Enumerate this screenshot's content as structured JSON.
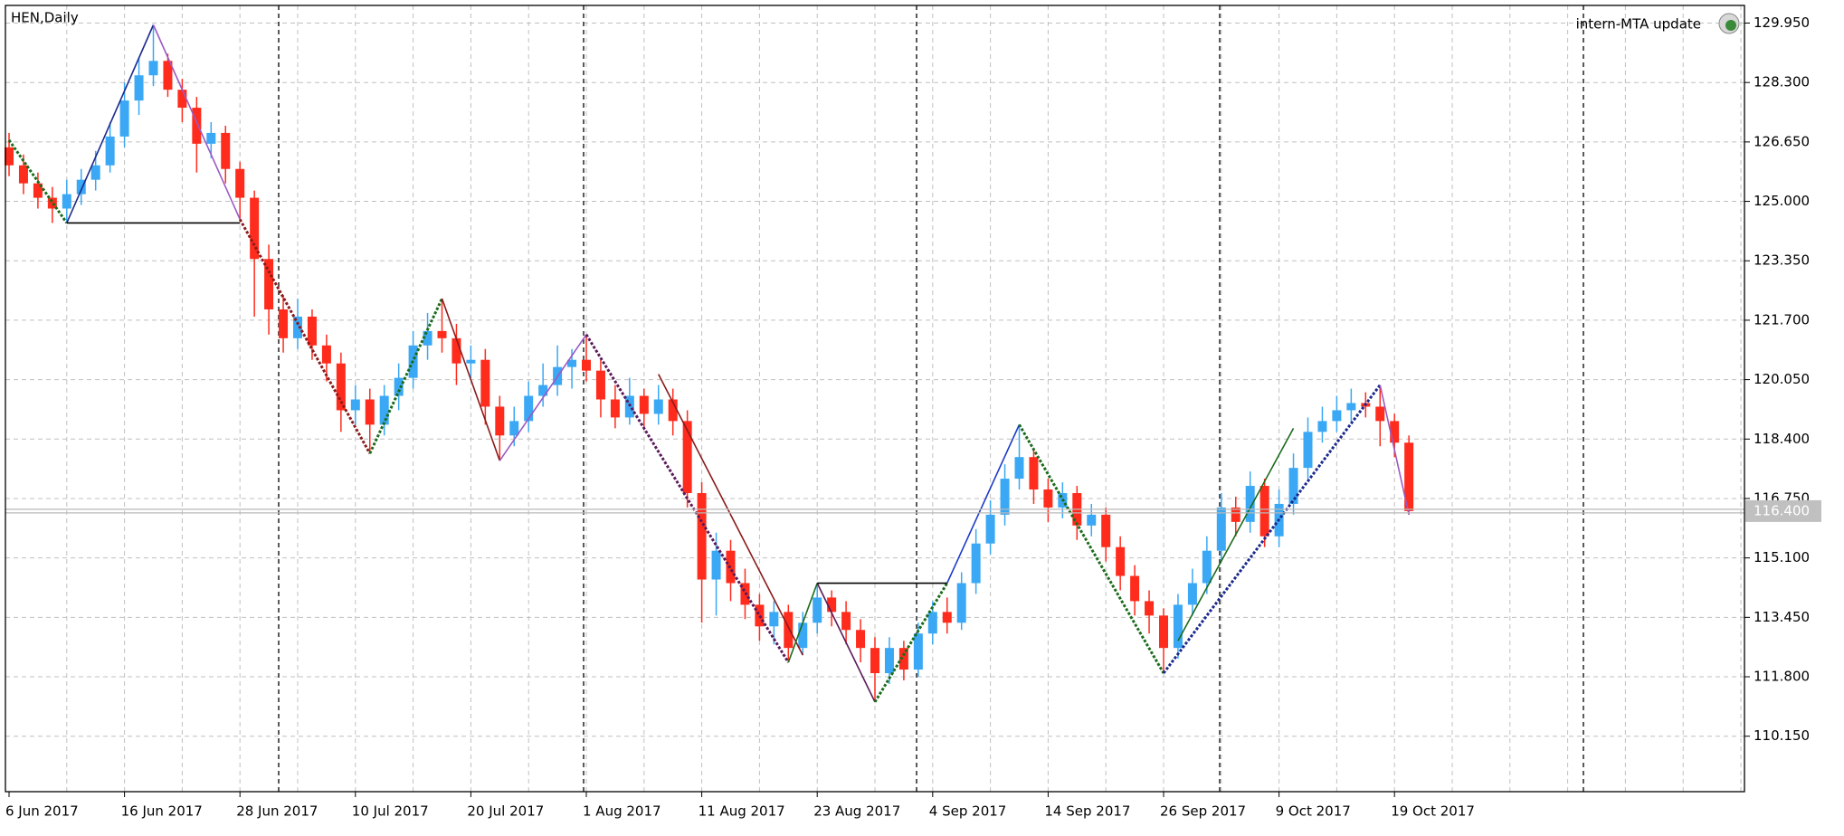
{
  "chart_data": {
    "type": "candlestick",
    "title": "HEN,Daily",
    "annotation": "intern-MTA update",
    "up_color": "#3aa8f4",
    "down_color": "#ff2b1c",
    "grid": true,
    "ylim": [
      108.61,
      130.44
    ],
    "yticks": [
      {
        "value": 129.95,
        "label": "129.950"
      },
      {
        "value": 128.3,
        "label": "128.300"
      },
      {
        "value": 126.65,
        "label": "126.650"
      },
      {
        "value": 125.0,
        "label": "125.000"
      },
      {
        "value": 123.35,
        "label": "123.350"
      },
      {
        "value": 121.7,
        "label": "121.700"
      },
      {
        "value": 120.05,
        "label": "120.050"
      },
      {
        "value": 118.4,
        "label": "118.400"
      },
      {
        "value": 116.75,
        "label": "116.750"
      },
      {
        "value": 115.1,
        "label": "115.100"
      },
      {
        "value": 113.45,
        "label": "113.450"
      },
      {
        "value": 111.8,
        "label": "111.800"
      },
      {
        "value": 110.15,
        "label": "110.150"
      }
    ],
    "current_price": {
      "value": 116.4,
      "label": "116.400"
    },
    "categories": [
      "6 Jun 2017",
      null,
      null,
      null,
      null,
      null,
      null,
      null,
      "16 Jun 2017",
      null,
      null,
      null,
      null,
      null,
      null,
      null,
      "28 Jun 2017",
      null,
      null,
      null,
      null,
      null,
      null,
      null,
      "10 Jul 2017",
      null,
      null,
      null,
      null,
      null,
      null,
      null,
      "20 Jul 2017",
      null,
      null,
      null,
      null,
      null,
      null,
      null,
      "1 Aug 2017",
      null,
      null,
      null,
      null,
      null,
      null,
      null,
      "11 Aug 2017",
      null,
      null,
      null,
      null,
      null,
      null,
      null,
      "23 Aug 2017",
      null,
      null,
      null,
      null,
      null,
      null,
      null,
      "4 Sep 2017",
      null,
      null,
      null,
      null,
      null,
      null,
      null,
      "14 Sep 2017",
      null,
      null,
      null,
      null,
      null,
      null,
      null,
      "26 Sep 2017",
      null,
      null,
      null,
      null,
      null,
      null,
      null,
      "9 Oct 2017",
      null,
      null,
      null,
      null,
      null,
      null,
      null,
      "19 Oct 2017",
      null
    ],
    "ohlc": [
      [
        126.5,
        126.9,
        125.7,
        126.0
      ],
      [
        126.0,
        126.3,
        125.2,
        125.5
      ],
      [
        125.5,
        125.8,
        124.8,
        125.1
      ],
      [
        125.1,
        125.4,
        124.4,
        124.8
      ],
      [
        124.8,
        125.6,
        124.4,
        125.2
      ],
      [
        125.2,
        125.9,
        124.9,
        125.6
      ],
      [
        125.6,
        126.4,
        125.3,
        126.0
      ],
      [
        126.0,
        127.2,
        125.8,
        126.8
      ],
      [
        126.8,
        128.3,
        126.5,
        127.8
      ],
      [
        127.8,
        129.0,
        127.4,
        128.5
      ],
      [
        128.5,
        129.9,
        128.2,
        128.9
      ],
      [
        128.9,
        129.1,
        127.9,
        128.1
      ],
      [
        128.1,
        128.4,
        127.2,
        127.6
      ],
      [
        127.6,
        127.9,
        125.8,
        126.6
      ],
      [
        126.6,
        127.2,
        126.2,
        126.9
      ],
      [
        126.9,
        127.1,
        125.5,
        125.9
      ],
      [
        125.9,
        126.1,
        124.5,
        125.1
      ],
      [
        125.1,
        125.3,
        121.8,
        123.4
      ],
      [
        123.4,
        123.8,
        121.3,
        122.0
      ],
      [
        122.0,
        122.4,
        120.8,
        121.2
      ],
      [
        121.2,
        122.3,
        120.9,
        121.8
      ],
      [
        121.8,
        122.0,
        120.6,
        121.0
      ],
      [
        121.0,
        121.3,
        120.0,
        120.5
      ],
      [
        120.5,
        120.8,
        118.6,
        119.2
      ],
      [
        119.2,
        119.9,
        118.8,
        119.5
      ],
      [
        119.5,
        119.8,
        118.0,
        118.8
      ],
      [
        118.8,
        119.9,
        118.5,
        119.6
      ],
      [
        119.6,
        120.5,
        119.2,
        120.1
      ],
      [
        120.1,
        121.4,
        119.8,
        121.0
      ],
      [
        121.0,
        121.9,
        120.6,
        121.4
      ],
      [
        121.4,
        122.3,
        120.8,
        121.2
      ],
      [
        121.2,
        121.6,
        119.9,
        120.5
      ],
      [
        120.5,
        121.0,
        120.1,
        120.6
      ],
      [
        120.6,
        120.9,
        118.8,
        119.3
      ],
      [
        119.3,
        119.6,
        117.8,
        118.5
      ],
      [
        118.5,
        119.3,
        118.2,
        118.9
      ],
      [
        118.9,
        120.0,
        118.6,
        119.6
      ],
      [
        119.6,
        120.5,
        119.3,
        119.9
      ],
      [
        119.9,
        121.0,
        119.6,
        120.4
      ],
      [
        120.4,
        120.9,
        119.8,
        120.6
      ],
      [
        120.6,
        121.3,
        120.0,
        120.3
      ],
      [
        120.3,
        120.6,
        119.0,
        119.5
      ],
      [
        119.5,
        119.9,
        118.7,
        119.0
      ],
      [
        119.0,
        120.1,
        118.8,
        119.6
      ],
      [
        119.6,
        119.8,
        118.7,
        119.1
      ],
      [
        119.1,
        119.9,
        118.8,
        119.5
      ],
      [
        119.5,
        119.8,
        118.5,
        118.9
      ],
      [
        118.9,
        119.2,
        116.5,
        116.9
      ],
      [
        116.9,
        117.2,
        113.3,
        114.5
      ],
      [
        114.5,
        115.8,
        113.5,
        115.3
      ],
      [
        115.3,
        115.6,
        113.9,
        114.4
      ],
      [
        114.4,
        114.8,
        113.4,
        113.8
      ],
      [
        113.8,
        114.1,
        112.8,
        113.2
      ],
      [
        113.2,
        113.9,
        112.7,
        113.6
      ],
      [
        113.6,
        113.8,
        112.2,
        112.6
      ],
      [
        112.6,
        113.6,
        112.4,
        113.3
      ],
      [
        113.3,
        114.4,
        113.0,
        114.0
      ],
      [
        114.0,
        114.2,
        113.2,
        113.6
      ],
      [
        113.6,
        113.9,
        112.7,
        113.1
      ],
      [
        113.1,
        113.4,
        112.2,
        112.6
      ],
      [
        112.6,
        112.9,
        111.1,
        111.9
      ],
      [
        111.9,
        112.9,
        111.6,
        112.6
      ],
      [
        112.6,
        112.8,
        111.7,
        112.0
      ],
      [
        112.0,
        113.3,
        111.8,
        113.0
      ],
      [
        113.0,
        113.9,
        112.7,
        113.6
      ],
      [
        113.6,
        114.0,
        113.0,
        113.3
      ],
      [
        113.3,
        114.7,
        113.1,
        114.4
      ],
      [
        114.4,
        115.9,
        114.1,
        115.5
      ],
      [
        115.5,
        116.7,
        115.2,
        116.3
      ],
      [
        116.3,
        117.7,
        116.0,
        117.3
      ],
      [
        117.3,
        118.8,
        117.0,
        117.9
      ],
      [
        117.9,
        118.1,
        116.6,
        117.0
      ],
      [
        117.0,
        117.3,
        116.1,
        116.5
      ],
      [
        116.5,
        117.2,
        116.2,
        116.9
      ],
      [
        116.9,
        117.1,
        115.6,
        116.0
      ],
      [
        116.0,
        116.6,
        115.7,
        116.3
      ],
      [
        116.3,
        116.5,
        115.0,
        115.4
      ],
      [
        115.4,
        115.7,
        114.2,
        114.6
      ],
      [
        114.6,
        114.9,
        113.5,
        113.9
      ],
      [
        113.9,
        114.2,
        113.0,
        113.5
      ],
      [
        113.5,
        113.7,
        111.9,
        112.6
      ],
      [
        112.6,
        114.1,
        112.3,
        113.8
      ],
      [
        113.8,
        114.8,
        113.5,
        114.4
      ],
      [
        114.4,
        115.7,
        114.1,
        115.3
      ],
      [
        115.3,
        116.9,
        115.0,
        116.5
      ],
      [
        116.5,
        116.8,
        115.7,
        116.1
      ],
      [
        116.1,
        117.5,
        115.8,
        117.1
      ],
      [
        117.1,
        117.3,
        115.4,
        115.7
      ],
      [
        115.7,
        117.0,
        115.4,
        116.6
      ],
      [
        116.6,
        118.0,
        116.3,
        117.6
      ],
      [
        117.6,
        119.0,
        117.3,
        118.6
      ],
      [
        118.6,
        119.3,
        118.3,
        118.9
      ],
      [
        118.9,
        119.6,
        118.6,
        119.2
      ],
      [
        119.2,
        119.8,
        118.9,
        119.4
      ],
      [
        119.4,
        119.7,
        119.0,
        119.3
      ],
      [
        119.3,
        119.9,
        118.2,
        118.9
      ],
      [
        118.9,
        119.1,
        117.9,
        118.3
      ],
      [
        118.3,
        118.5,
        116.3,
        116.4
      ]
    ],
    "overlays": [
      {
        "color": "#1b6b1b",
        "dashed": true,
        "points": [
          [
            0,
            126.7
          ],
          [
            4,
            124.4
          ]
        ]
      },
      {
        "color": "#1a2a8c",
        "dashed": false,
        "points": [
          [
            4,
            124.4
          ],
          [
            10,
            129.9
          ]
        ]
      },
      {
        "color": "#9b59c4",
        "dashed": false,
        "points": [
          [
            10,
            129.9
          ],
          [
            16,
            124.5
          ]
        ]
      },
      {
        "color": "#8b1a1a",
        "dashed": true,
        "points": [
          [
            16,
            124.5
          ],
          [
            25,
            118.0
          ]
        ]
      },
      {
        "color": "#1b6b1b",
        "dashed": true,
        "points": [
          [
            25,
            118.0
          ],
          [
            30,
            122.3
          ]
        ]
      },
      {
        "color": "#8b1a1a",
        "dashed": false,
        "points": [
          [
            30,
            122.3
          ],
          [
            34,
            117.8
          ]
        ]
      },
      {
        "color": "#9b59c4",
        "dashed": false,
        "points": [
          [
            34,
            117.8
          ],
          [
            40,
            121.3
          ]
        ]
      },
      {
        "color": "#5a1a5a",
        "dashed": true,
        "points": [
          [
            40,
            121.3
          ],
          [
            54,
            112.2
          ]
        ]
      },
      {
        "color": "#8b1a1a",
        "dashed": false,
        "points": [
          [
            45,
            120.2
          ],
          [
            55,
            112.4
          ]
        ]
      },
      {
        "color": "#1b6b1b",
        "dashed": false,
        "points": [
          [
            54,
            112.2
          ],
          [
            56,
            114.4
          ]
        ]
      },
      {
        "color": "#5a1a5a",
        "dashed": false,
        "points": [
          [
            56,
            114.4
          ],
          [
            60,
            111.1
          ]
        ]
      },
      {
        "color": "#1b6b1b",
        "dashed": true,
        "points": [
          [
            60,
            111.1
          ],
          [
            65,
            114.4
          ]
        ]
      },
      {
        "color": "#1e3cc8",
        "dashed": false,
        "points": [
          [
            65,
            114.4
          ],
          [
            70,
            118.8
          ]
        ]
      },
      {
        "color": "#1b6b1b",
        "dashed": true,
        "points": [
          [
            70,
            118.8
          ],
          [
            80,
            111.9
          ]
        ]
      },
      {
        "color": "#1a2a8c",
        "dashed": true,
        "points": [
          [
            80,
            111.9
          ],
          [
            95,
            119.9
          ]
        ]
      },
      {
        "color": "#1b6b1b",
        "dashed": false,
        "points": [
          [
            81,
            112.8
          ],
          [
            89,
            118.7
          ]
        ]
      },
      {
        "color": "#9b59c4",
        "dashed": false,
        "points": [
          [
            95,
            119.9
          ],
          [
            97,
            116.3
          ]
        ]
      },
      {
        "color": "#000000",
        "dashed": false,
        "points": [
          [
            4,
            124.4
          ],
          [
            16,
            124.4
          ]
        ]
      },
      {
        "color": "#000000",
        "dashed": false,
        "points": [
          [
            56,
            114.4
          ],
          [
            65,
            114.4
          ]
        ]
      }
    ]
  }
}
